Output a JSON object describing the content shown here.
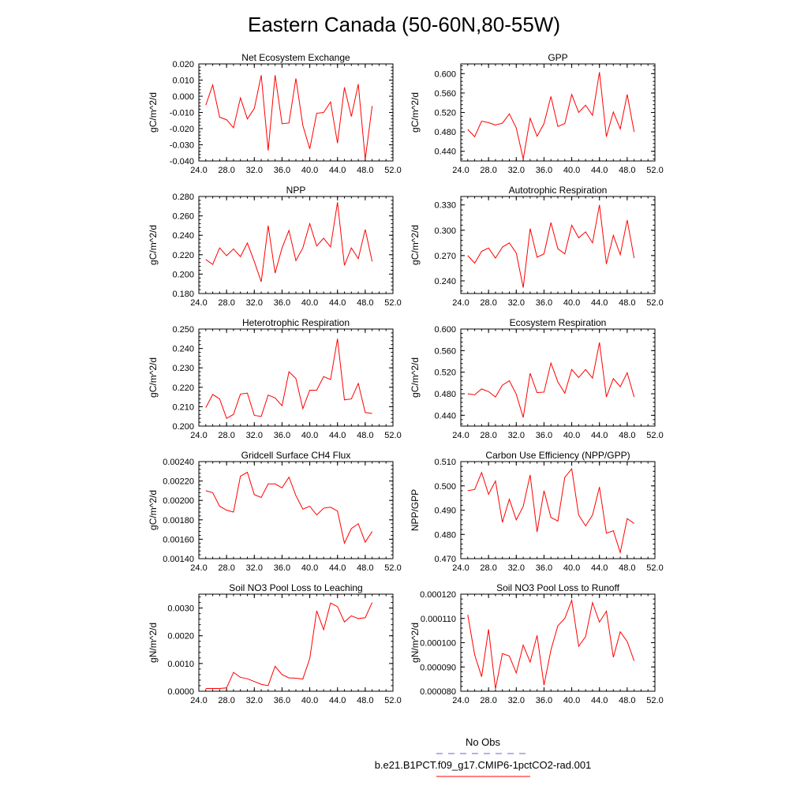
{
  "figure": {
    "title": "Eastern Canada (50-60N,80-55W)",
    "legend": [
      {
        "label": "No Obs",
        "color": "#6666dd",
        "dashed": true
      },
      {
        "label": "b.e21.B1PCT.f09_g17.CMIP6-1pctCO2-rad.001",
        "color": "#ff0000",
        "dashed": false
      }
    ]
  },
  "chart_data": [
    {
      "type": "line",
      "title": "Net Ecosystem Exchange",
      "ylabel": "gC/m^2/d",
      "xlim": [
        24,
        52
      ],
      "ylim": [
        -0.04,
        0.02
      ],
      "xticks": [
        24,
        28,
        32,
        36,
        40,
        44,
        48,
        52
      ],
      "xtick_labels": [
        "24.0",
        "28.0",
        "32.0",
        "36.0",
        "40.0",
        "44.0",
        "48.0",
        "52.0"
      ],
      "yticks": [
        -0.04,
        -0.03,
        -0.02,
        -0.01,
        0.0,
        0.01,
        0.02
      ],
      "ytick_labels": [
        "-0.040",
        "-0.030",
        "-0.020",
        "-0.010",
        "0.000",
        "0.010",
        "0.020"
      ],
      "series": [
        {
          "color": "#ff0000",
          "x": [
            25,
            26,
            27,
            28,
            29,
            30,
            31,
            32,
            33,
            34,
            35,
            36,
            37,
            38,
            39,
            40,
            41,
            42,
            43,
            44,
            45,
            46,
            47,
            48,
            49
          ],
          "y": [
            -0.0055,
            0.007,
            -0.013,
            -0.0145,
            -0.0195,
            -0.001,
            -0.014,
            -0.0075,
            0.013,
            -0.0335,
            0.013,
            -0.017,
            -0.0165,
            0.011,
            -0.018,
            -0.0325,
            -0.0105,
            -0.01,
            -0.0035,
            -0.029,
            0.0055,
            -0.0125,
            0.0075,
            -0.039,
            -0.006
          ]
        }
      ]
    },
    {
      "type": "line",
      "title": "GPP",
      "ylabel": "gC/m^2/d",
      "xlim": [
        24,
        52
      ],
      "ylim": [
        0.42,
        0.62
      ],
      "xticks": [
        24,
        28,
        32,
        36,
        40,
        44,
        48,
        52
      ],
      "xtick_labels": [
        "24.0",
        "28.0",
        "32.0",
        "36.0",
        "40.0",
        "44.0",
        "48.0",
        "52.0"
      ],
      "yticks": [
        0.44,
        0.48,
        0.52,
        0.56,
        0.6
      ],
      "ytick_labels": [
        "0.440",
        "0.480",
        "0.520",
        "0.560",
        "0.600"
      ],
      "series": [
        {
          "color": "#ff0000",
          "x": [
            25,
            26,
            27,
            28,
            29,
            30,
            31,
            32,
            33,
            34,
            35,
            36,
            37,
            38,
            39,
            40,
            41,
            42,
            43,
            44,
            45,
            46,
            47,
            48,
            49
          ],
          "y": [
            0.485,
            0.47,
            0.502,
            0.499,
            0.494,
            0.498,
            0.517,
            0.488,
            0.424,
            0.508,
            0.471,
            0.497,
            0.553,
            0.491,
            0.497,
            0.557,
            0.52,
            0.535,
            0.514,
            0.603,
            0.47,
            0.521,
            0.486,
            0.557,
            0.48
          ]
        }
      ]
    },
    {
      "type": "line",
      "title": "NPP",
      "ylabel": "gC/m^2/d",
      "xlim": [
        24,
        52
      ],
      "ylim": [
        0.18,
        0.28
      ],
      "xticks": [
        24,
        28,
        32,
        36,
        40,
        44,
        48,
        52
      ],
      "xtick_labels": [
        "24.0",
        "28.0",
        "32.0",
        "36.0",
        "40.0",
        "44.0",
        "48.0",
        "52.0"
      ],
      "yticks": [
        0.18,
        0.2,
        0.22,
        0.24,
        0.26,
        0.28
      ],
      "ytick_labels": [
        "0.180",
        "0.200",
        "0.220",
        "0.240",
        "0.260",
        "0.280"
      ],
      "series": [
        {
          "color": "#ff0000",
          "x": [
            25,
            26,
            27,
            28,
            29,
            30,
            31,
            32,
            33,
            34,
            35,
            36,
            37,
            38,
            39,
            40,
            41,
            42,
            43,
            44,
            45,
            46,
            47,
            48,
            49
          ],
          "y": [
            0.215,
            0.21,
            0.227,
            0.219,
            0.226,
            0.218,
            0.232,
            0.213,
            0.192,
            0.25,
            0.201,
            0.227,
            0.245,
            0.214,
            0.227,
            0.252,
            0.229,
            0.237,
            0.228,
            0.274,
            0.209,
            0.227,
            0.216,
            0.246,
            0.213
          ]
        }
      ]
    },
    {
      "type": "line",
      "title": "Autotrophic Respiration",
      "ylabel": "gC/m^2/d",
      "xlim": [
        24,
        52
      ],
      "ylim": [
        0.225,
        0.34
      ],
      "xticks": [
        24,
        28,
        32,
        36,
        40,
        44,
        48,
        52
      ],
      "xtick_labels": [
        "24.0",
        "28.0",
        "32.0",
        "36.0",
        "40.0",
        "44.0",
        "48.0",
        "52.0"
      ],
      "yticks": [
        0.24,
        0.27,
        0.3,
        0.33
      ],
      "ytick_labels": [
        "0.240",
        "0.270",
        "0.300",
        "0.330"
      ],
      "series": [
        {
          "color": "#ff0000",
          "x": [
            25,
            26,
            27,
            28,
            29,
            30,
            31,
            32,
            33,
            34,
            35,
            36,
            37,
            38,
            39,
            40,
            41,
            42,
            43,
            44,
            45,
            46,
            47,
            48,
            49
          ],
          "y": [
            0.27,
            0.261,
            0.275,
            0.279,
            0.267,
            0.28,
            0.285,
            0.273,
            0.232,
            0.302,
            0.268,
            0.272,
            0.309,
            0.278,
            0.272,
            0.306,
            0.291,
            0.298,
            0.285,
            0.33,
            0.26,
            0.294,
            0.271,
            0.312,
            0.267
          ]
        }
      ]
    },
    {
      "type": "line",
      "title": "Heterotrophic Respiration",
      "ylabel": "gC/m^2/d",
      "xlim": [
        24,
        52
      ],
      "ylim": [
        0.2,
        0.25
      ],
      "xticks": [
        24,
        28,
        32,
        36,
        40,
        44,
        48,
        52
      ],
      "xtick_labels": [
        "24.0",
        "28.0",
        "32.0",
        "36.0",
        "40.0",
        "44.0",
        "48.0",
        "52.0"
      ],
      "yticks": [
        0.2,
        0.21,
        0.22,
        0.23,
        0.24,
        0.25
      ],
      "ytick_labels": [
        "0.200",
        "0.210",
        "0.220",
        "0.230",
        "0.240",
        "0.250"
      ],
      "series": [
        {
          "color": "#ff0000",
          "x": [
            25,
            26,
            27,
            28,
            29,
            30,
            31,
            32,
            33,
            34,
            35,
            36,
            37,
            38,
            39,
            40,
            41,
            42,
            43,
            44,
            45,
            46,
            47,
            48,
            49
          ],
          "y": [
            0.2095,
            0.2163,
            0.214,
            0.204,
            0.206,
            0.2165,
            0.217,
            0.2055,
            0.205,
            0.216,
            0.2145,
            0.2105,
            0.228,
            0.2245,
            0.209,
            0.2185,
            0.2185,
            0.2255,
            0.224,
            0.245,
            0.2135,
            0.214,
            0.222,
            0.207,
            0.2065
          ]
        }
      ]
    },
    {
      "type": "line",
      "title": "Ecosystem Respiration",
      "ylabel": "gC/m^2/d",
      "xlim": [
        24,
        52
      ],
      "ylim": [
        0.42,
        0.6
      ],
      "xticks": [
        24,
        28,
        32,
        36,
        40,
        44,
        48,
        52
      ],
      "xtick_labels": [
        "24.0",
        "28.0",
        "32.0",
        "36.0",
        "40.0",
        "44.0",
        "48.0",
        "52.0"
      ],
      "yticks": [
        0.44,
        0.48,
        0.52,
        0.56,
        0.6
      ],
      "ytick_labels": [
        "0.440",
        "0.480",
        "0.520",
        "0.560",
        "0.600"
      ],
      "series": [
        {
          "color": "#ff0000",
          "x": [
            25,
            26,
            27,
            28,
            29,
            30,
            31,
            32,
            33,
            34,
            35,
            36,
            37,
            38,
            39,
            40,
            41,
            42,
            43,
            44,
            45,
            46,
            47,
            48,
            49
          ],
          "y": [
            0.48,
            0.478,
            0.489,
            0.484,
            0.474,
            0.496,
            0.504,
            0.479,
            0.436,
            0.518,
            0.482,
            0.483,
            0.537,
            0.502,
            0.481,
            0.525,
            0.51,
            0.525,
            0.509,
            0.575,
            0.474,
            0.508,
            0.493,
            0.519,
            0.474
          ]
        }
      ]
    },
    {
      "type": "line",
      "title": "Gridcell Surface CH4 Flux",
      "ylabel": "gC/m^2/d",
      "xlim": [
        24,
        52
      ],
      "ylim": [
        0.0014,
        0.0024
      ],
      "xticks": [
        24,
        28,
        32,
        36,
        40,
        44,
        48,
        52
      ],
      "xtick_labels": [
        "24.0",
        "28.0",
        "32.0",
        "36.0",
        "40.0",
        "44.0",
        "48.0",
        "52.0"
      ],
      "yticks": [
        0.0014,
        0.0016,
        0.0018,
        0.002,
        0.0022,
        0.0024
      ],
      "ytick_labels": [
        "0.00140",
        "0.00160",
        "0.00180",
        "0.00200",
        "0.00220",
        "0.00240"
      ],
      "series": [
        {
          "color": "#ff0000",
          "x": [
            25,
            26,
            27,
            28,
            29,
            30,
            31,
            32,
            33,
            34,
            35,
            36,
            37,
            38,
            39,
            40,
            41,
            42,
            43,
            44,
            45,
            46,
            47,
            48,
            49
          ],
          "y": [
            0.0021,
            0.00208,
            0.00194,
            0.0019,
            0.00188,
            0.00225,
            0.00229,
            0.00206,
            0.00203,
            0.00217,
            0.00217,
            0.00213,
            0.00224,
            0.00205,
            0.00191,
            0.00194,
            0.00185,
            0.00192,
            0.00193,
            0.00189,
            0.00156,
            0.00171,
            0.00176,
            0.00157,
            0.00168
          ]
        }
      ]
    },
    {
      "type": "line",
      "title": "Carbon Use Efficiency (NPP/GPP)",
      "ylabel": "NPP/GPP",
      "xlim": [
        24,
        52
      ],
      "ylim": [
        0.47,
        0.51
      ],
      "xticks": [
        24,
        28,
        32,
        36,
        40,
        44,
        48,
        52
      ],
      "xtick_labels": [
        "24.0",
        "28.0",
        "32.0",
        "36.0",
        "40.0",
        "44.0",
        "48.0",
        "52.0"
      ],
      "yticks": [
        0.47,
        0.48,
        0.49,
        0.5,
        0.51
      ],
      "ytick_labels": [
        "0.470",
        "0.480",
        "0.490",
        "0.500",
        "0.510"
      ],
      "series": [
        {
          "color": "#ff0000",
          "x": [
            25,
            26,
            27,
            28,
            29,
            30,
            31,
            32,
            33,
            34,
            35,
            36,
            37,
            38,
            39,
            40,
            41,
            42,
            43,
            44,
            45,
            46,
            47,
            48,
            49
          ],
          "y": [
            0.498,
            0.4985,
            0.5055,
            0.4965,
            0.502,
            0.485,
            0.4945,
            0.486,
            0.4915,
            0.5045,
            0.481,
            0.498,
            0.487,
            0.4855,
            0.5035,
            0.507,
            0.488,
            0.4835,
            0.488,
            0.4995,
            0.4805,
            0.4815,
            0.4725,
            0.4865,
            0.4845
          ]
        }
      ]
    },
    {
      "type": "line",
      "title": "Soil NO3 Pool Loss to Leaching",
      "ylabel": "gN/m^2/d",
      "xlim": [
        24,
        52
      ],
      "ylim": [
        0.0,
        0.0035
      ],
      "xticks": [
        24,
        28,
        32,
        36,
        40,
        44,
        48,
        52
      ],
      "xtick_labels": [
        "24.0",
        "28.0",
        "32.0",
        "36.0",
        "40.0",
        "44.0",
        "48.0",
        "52.0"
      ],
      "yticks": [
        0.0,
        0.001,
        0.002,
        0.003
      ],
      "ytick_labels": [
        "0.0000",
        "0.0010",
        "0.0020",
        "0.0030"
      ],
      "series": [
        {
          "color": "#ff0000",
          "x": [
            25,
            26,
            27,
            28,
            29,
            30,
            31,
            32,
            33,
            34,
            35,
            36,
            37,
            38,
            39,
            40,
            41,
            42,
            43,
            44,
            45,
            46,
            47,
            48,
            49
          ],
          "y": [
            0.0001,
            0.0001,
            0.0001,
            0.00012,
            0.00068,
            0.0005,
            0.00045,
            0.00035,
            0.00025,
            0.0002,
            0.0009,
            0.0006,
            0.00048,
            0.00047,
            0.00044,
            0.00118,
            0.0029,
            0.00222,
            0.00318,
            0.00305,
            0.0025,
            0.00272,
            0.00262,
            0.00265,
            0.0032
          ]
        }
      ]
    },
    {
      "type": "line",
      "title": "Soil NO3 Pool Loss to Runoff",
      "ylabel": "gN/m^2/d",
      "xlim": [
        24,
        52
      ],
      "ylim": [
        8e-05,
        0.00012
      ],
      "xticks": [
        24,
        28,
        32,
        36,
        40,
        44,
        48,
        52
      ],
      "xtick_labels": [
        "24.0",
        "28.0",
        "32.0",
        "36.0",
        "40.0",
        "44.0",
        "48.0",
        "52.0"
      ],
      "yticks": [
        8e-05,
        9e-05,
        0.0001,
        0.00011,
        0.00012
      ],
      "ytick_labels": [
        "0.000080",
        "0.000090",
        "0.000100",
        "0.000110",
        "0.000120"
      ],
      "series": [
        {
          "color": "#ff0000",
          "x": [
            25,
            26,
            27,
            28,
            29,
            30,
            31,
            32,
            33,
            34,
            35,
            36,
            37,
            38,
            39,
            40,
            41,
            42,
            43,
            44,
            45,
            46,
            47,
            48,
            49
          ],
          "y": [
            0.0001115,
            9.5e-05,
            8.6e-05,
            0.0001055,
            8.1e-05,
            9.55e-05,
            9.45e-05,
            8.75e-05,
            9.9e-05,
            9.2e-05,
            0.000103,
            8.25e-05,
            9.7e-05,
            0.000107,
            0.00011,
            0.0001175,
            9.85e-05,
            0.0001025,
            0.0001165,
            0.0001085,
            0.000113,
            9.4e-05,
            0.0001045,
            0.0001005,
            9.25e-05
          ]
        }
      ]
    }
  ]
}
